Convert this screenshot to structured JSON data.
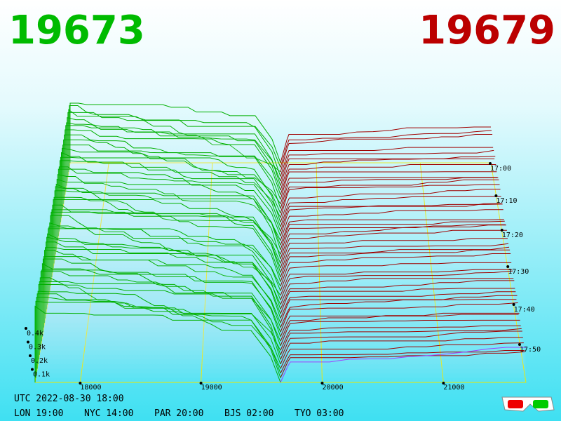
{
  "header": {
    "bid": "19673",
    "ask": "19679"
  },
  "price_axis": {
    "ticks": [
      "18000",
      "19000",
      "20000",
      "21000"
    ]
  },
  "depth_axis": {
    "ticks": [
      "0.4k",
      "0.3k",
      "0.2k",
      "0.1k"
    ]
  },
  "time_axis": {
    "ticks": [
      "17:00",
      "17:10",
      "17:20",
      "17:30",
      "17:40",
      "17:50"
    ]
  },
  "footer": {
    "utc": "UTC 2022-08-30 18:00",
    "zones": [
      "LON 19:00",
      "NYC 14:00",
      "PAR 20:00",
      "BJS 02:00",
      "TYO 03:00"
    ]
  }
}
